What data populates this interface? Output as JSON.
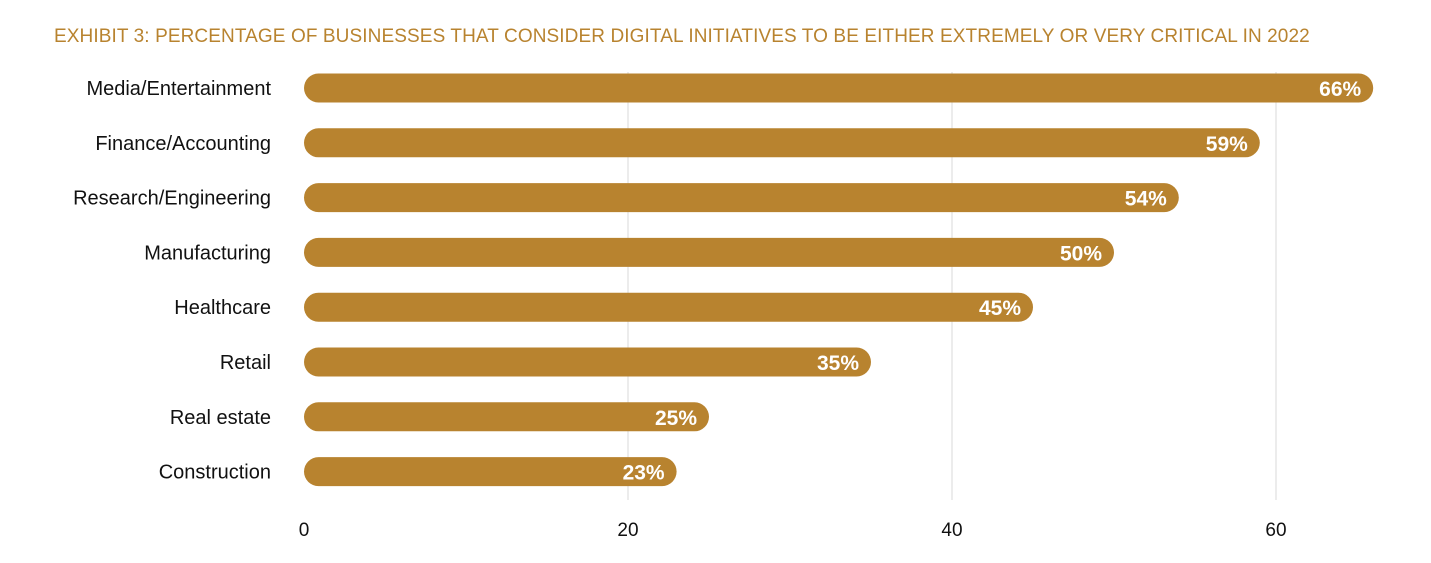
{
  "chart_data": {
    "type": "bar",
    "orientation": "horizontal",
    "title": "EXHIBIT 3: PERCENTAGE OF BUSINESSES THAT CONSIDER DIGITAL INITIATIVES TO BE EITHER EXTREMELY OR VERY CRITICAL IN 2022",
    "categories": [
      "Media/Entertainment",
      "Finance/Accounting",
      "Research/Engineering",
      "Manufacturing",
      "Healthcare",
      "Retail",
      "Real estate",
      "Construction"
    ],
    "values": [
      66,
      59,
      54,
      50,
      45,
      35,
      25,
      23
    ],
    "data_labels": [
      "66%",
      "59%",
      "54%",
      "50%",
      "45%",
      "35%",
      "25%",
      "23%"
    ],
    "x_ticks": [
      "0",
      "20",
      "40",
      "60"
    ],
    "xlim": [
      0,
      66
    ],
    "xlabel": "",
    "ylabel": "",
    "grid": true,
    "legend": "none",
    "colors": {
      "bar": "#b8832f",
      "title": "#b8832f",
      "grid": "#d9d9d9",
      "label": "#111111",
      "data_label": "#ffffff"
    }
  }
}
